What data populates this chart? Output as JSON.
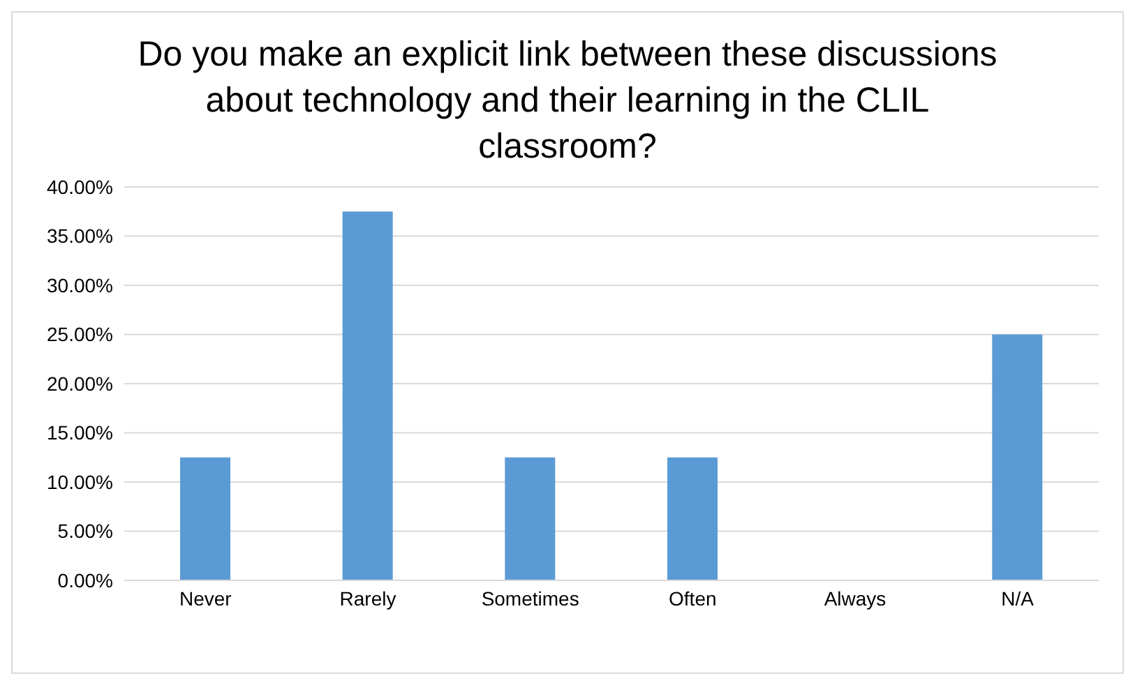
{
  "chart_data": {
    "type": "bar",
    "title": "Do you make an explicit link between these discussions about technology and their learning in the CLIL classroom?",
    "categories": [
      "Never",
      "Rarely",
      "Sometimes",
      "Often",
      "Always",
      "N/A"
    ],
    "values": [
      12.5,
      37.5,
      12.5,
      12.5,
      0,
      25
    ],
    "color": "#5b9bd5",
    "ylim": [
      0,
      40
    ],
    "yticks": [
      {
        "value": 0,
        "label": "0.00%"
      },
      {
        "value": 5,
        "label": "5.00%"
      },
      {
        "value": 10,
        "label": "10.00%"
      },
      {
        "value": 15,
        "label": "15.00%"
      },
      {
        "value": 20,
        "label": "20.00%"
      },
      {
        "value": 25,
        "label": "25.00%"
      },
      {
        "value": 30,
        "label": "30.00%"
      },
      {
        "value": 35,
        "label": "35.00%"
      },
      {
        "value": 40,
        "label": "40.00%"
      }
    ],
    "grid": "y"
  }
}
